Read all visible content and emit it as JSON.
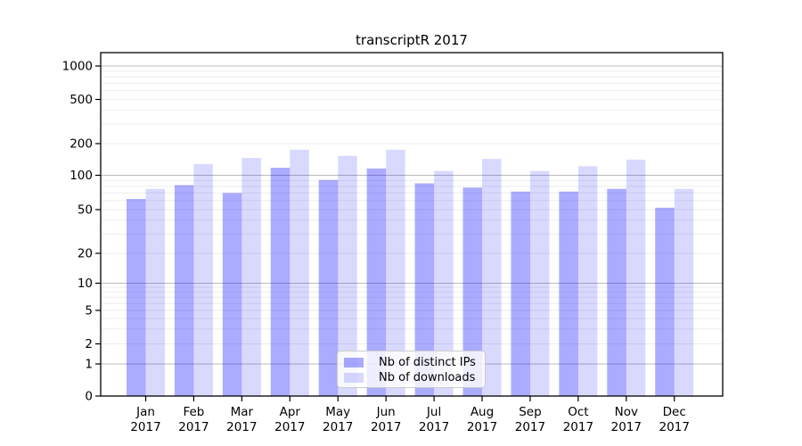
{
  "chart_data": {
    "type": "bar",
    "title": "transcriptR 2017",
    "categories": [
      "Jan 2017",
      "Feb 2017",
      "Mar 2017",
      "Apr 2017",
      "May 2017",
      "Jun 2017",
      "Jul 2017",
      "Aug 2017",
      "Sep 2017",
      "Oct 2017",
      "Nov 2017",
      "Dec 2017"
    ],
    "series": [
      {
        "name": "Nb of distinct IPs",
        "color": "rgba(0,0,255,0.33)",
        "values": [
          62,
          82,
          70,
          118,
          91,
          116,
          85,
          78,
          72,
          72,
          76,
          52
        ]
      },
      {
        "name": "Nb of downloads",
        "color": "rgba(0,0,255,0.15)",
        "values": [
          76,
          128,
          146,
          175,
          153,
          175,
          110,
          143,
          110,
          122,
          141,
          76
        ]
      }
    ],
    "xlabel": "",
    "ylabel": "",
    "yscale": "symlog",
    "yticks": [
      0,
      1,
      2,
      5,
      10,
      20,
      50,
      100,
      200,
      500,
      1000
    ],
    "ylim": [
      0,
      1400
    ],
    "grid": "on",
    "legend_position": "lower center"
  },
  "colors": {
    "frame": "#000000",
    "grid_minor": "#ededed",
    "grid_decade": "#bbbbbb",
    "tick_text": "#000000",
    "legend_border": "#cccccc"
  }
}
